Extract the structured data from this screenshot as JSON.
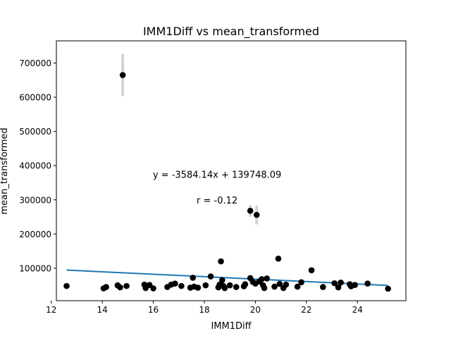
{
  "chart_data": {
    "type": "scatter",
    "title": "IMM1Diff vs mean_transformed",
    "xlabel": "IMM1Diff",
    "ylabel": "mean_transformed",
    "xlim": [
      12.2,
      25.9
    ],
    "ylim": [
      5000,
      765000
    ],
    "xticks": [
      12,
      14,
      16,
      18,
      20,
      22,
      24
    ],
    "yticks": [
      100000,
      200000,
      300000,
      400000,
      500000,
      600000,
      700000
    ],
    "xtick_labels": [
      "12",
      "14",
      "16",
      "18",
      "20",
      "22",
      "24"
    ],
    "ytick_labels": [
      "100000",
      "200000",
      "300000",
      "400000",
      "500000",
      "600000",
      "700000"
    ],
    "grid": false,
    "colors": {
      "points": "#000000",
      "fit_line": "#1f77b4",
      "error_bars": "#d3d3d3"
    },
    "points": [
      {
        "x": 12.6,
        "y": 48000
      },
      {
        "x": 14.05,
        "y": 41000
      },
      {
        "x": 14.15,
        "y": 45000
      },
      {
        "x": 14.6,
        "y": 50000
      },
      {
        "x": 14.7,
        "y": 44000
      },
      {
        "x": 14.8,
        "y": 665000,
        "err": 62000
      },
      {
        "x": 14.95,
        "y": 48000
      },
      {
        "x": 15.65,
        "y": 52000
      },
      {
        "x": 15.7,
        "y": 42000
      },
      {
        "x": 15.85,
        "y": 51000
      },
      {
        "x": 16.0,
        "y": 41000
      },
      {
        "x": 16.55,
        "y": 45000
      },
      {
        "x": 16.7,
        "y": 52000
      },
      {
        "x": 16.85,
        "y": 55000
      },
      {
        "x": 17.1,
        "y": 48000
      },
      {
        "x": 17.45,
        "y": 43000
      },
      {
        "x": 17.55,
        "y": 72000
      },
      {
        "x": 17.6,
        "y": 46000
      },
      {
        "x": 17.75,
        "y": 43000
      },
      {
        "x": 18.05,
        "y": 50000
      },
      {
        "x": 18.25,
        "y": 76000
      },
      {
        "x": 18.55,
        "y": 44000
      },
      {
        "x": 18.6,
        "y": 52000
      },
      {
        "x": 18.65,
        "y": 120000
      },
      {
        "x": 18.7,
        "y": 65000
      },
      {
        "x": 18.75,
        "y": 48000
      },
      {
        "x": 18.8,
        "y": 42000
      },
      {
        "x": 19.0,
        "y": 50000
      },
      {
        "x": 19.25,
        "y": 45000
      },
      {
        "x": 19.55,
        "y": 47000
      },
      {
        "x": 19.6,
        "y": 53000
      },
      {
        "x": 19.8,
        "y": 71000
      },
      {
        "x": 19.8,
        "y": 268000,
        "err": 17000
      },
      {
        "x": 19.9,
        "y": 60000
      },
      {
        "x": 20.0,
        "y": 55000
      },
      {
        "x": 20.05,
        "y": 256000,
        "err": 28000
      },
      {
        "x": 20.15,
        "y": 61000
      },
      {
        "x": 20.25,
        "y": 68000
      },
      {
        "x": 20.3,
        "y": 50000
      },
      {
        "x": 20.35,
        "y": 42000
      },
      {
        "x": 20.45,
        "y": 70000
      },
      {
        "x": 20.75,
        "y": 46000
      },
      {
        "x": 20.9,
        "y": 128000
      },
      {
        "x": 20.95,
        "y": 54000
      },
      {
        "x": 21.1,
        "y": 42000
      },
      {
        "x": 21.2,
        "y": 52000
      },
      {
        "x": 21.65,
        "y": 46000
      },
      {
        "x": 21.8,
        "y": 59000
      },
      {
        "x": 22.2,
        "y": 94000
      },
      {
        "x": 22.65,
        "y": 45000
      },
      {
        "x": 23.1,
        "y": 56000
      },
      {
        "x": 23.25,
        "y": 44000
      },
      {
        "x": 23.35,
        "y": 58000
      },
      {
        "x": 23.7,
        "y": 53000
      },
      {
        "x": 23.75,
        "y": 47000
      },
      {
        "x": 23.9,
        "y": 51000
      },
      {
        "x": 24.4,
        "y": 55000
      },
      {
        "x": 25.2,
        "y": 40000
      }
    ],
    "fit": {
      "slope": -3584.14,
      "intercept": 139748.09,
      "x_range": [
        12.6,
        25.2
      ]
    },
    "annotations": [
      {
        "text": "y = -3584.14x + 139748.09",
        "x": 18.5,
        "y": 375000
      },
      {
        "text": "r = -0.12",
        "x": 18.5,
        "y": 300000
      }
    ]
  }
}
